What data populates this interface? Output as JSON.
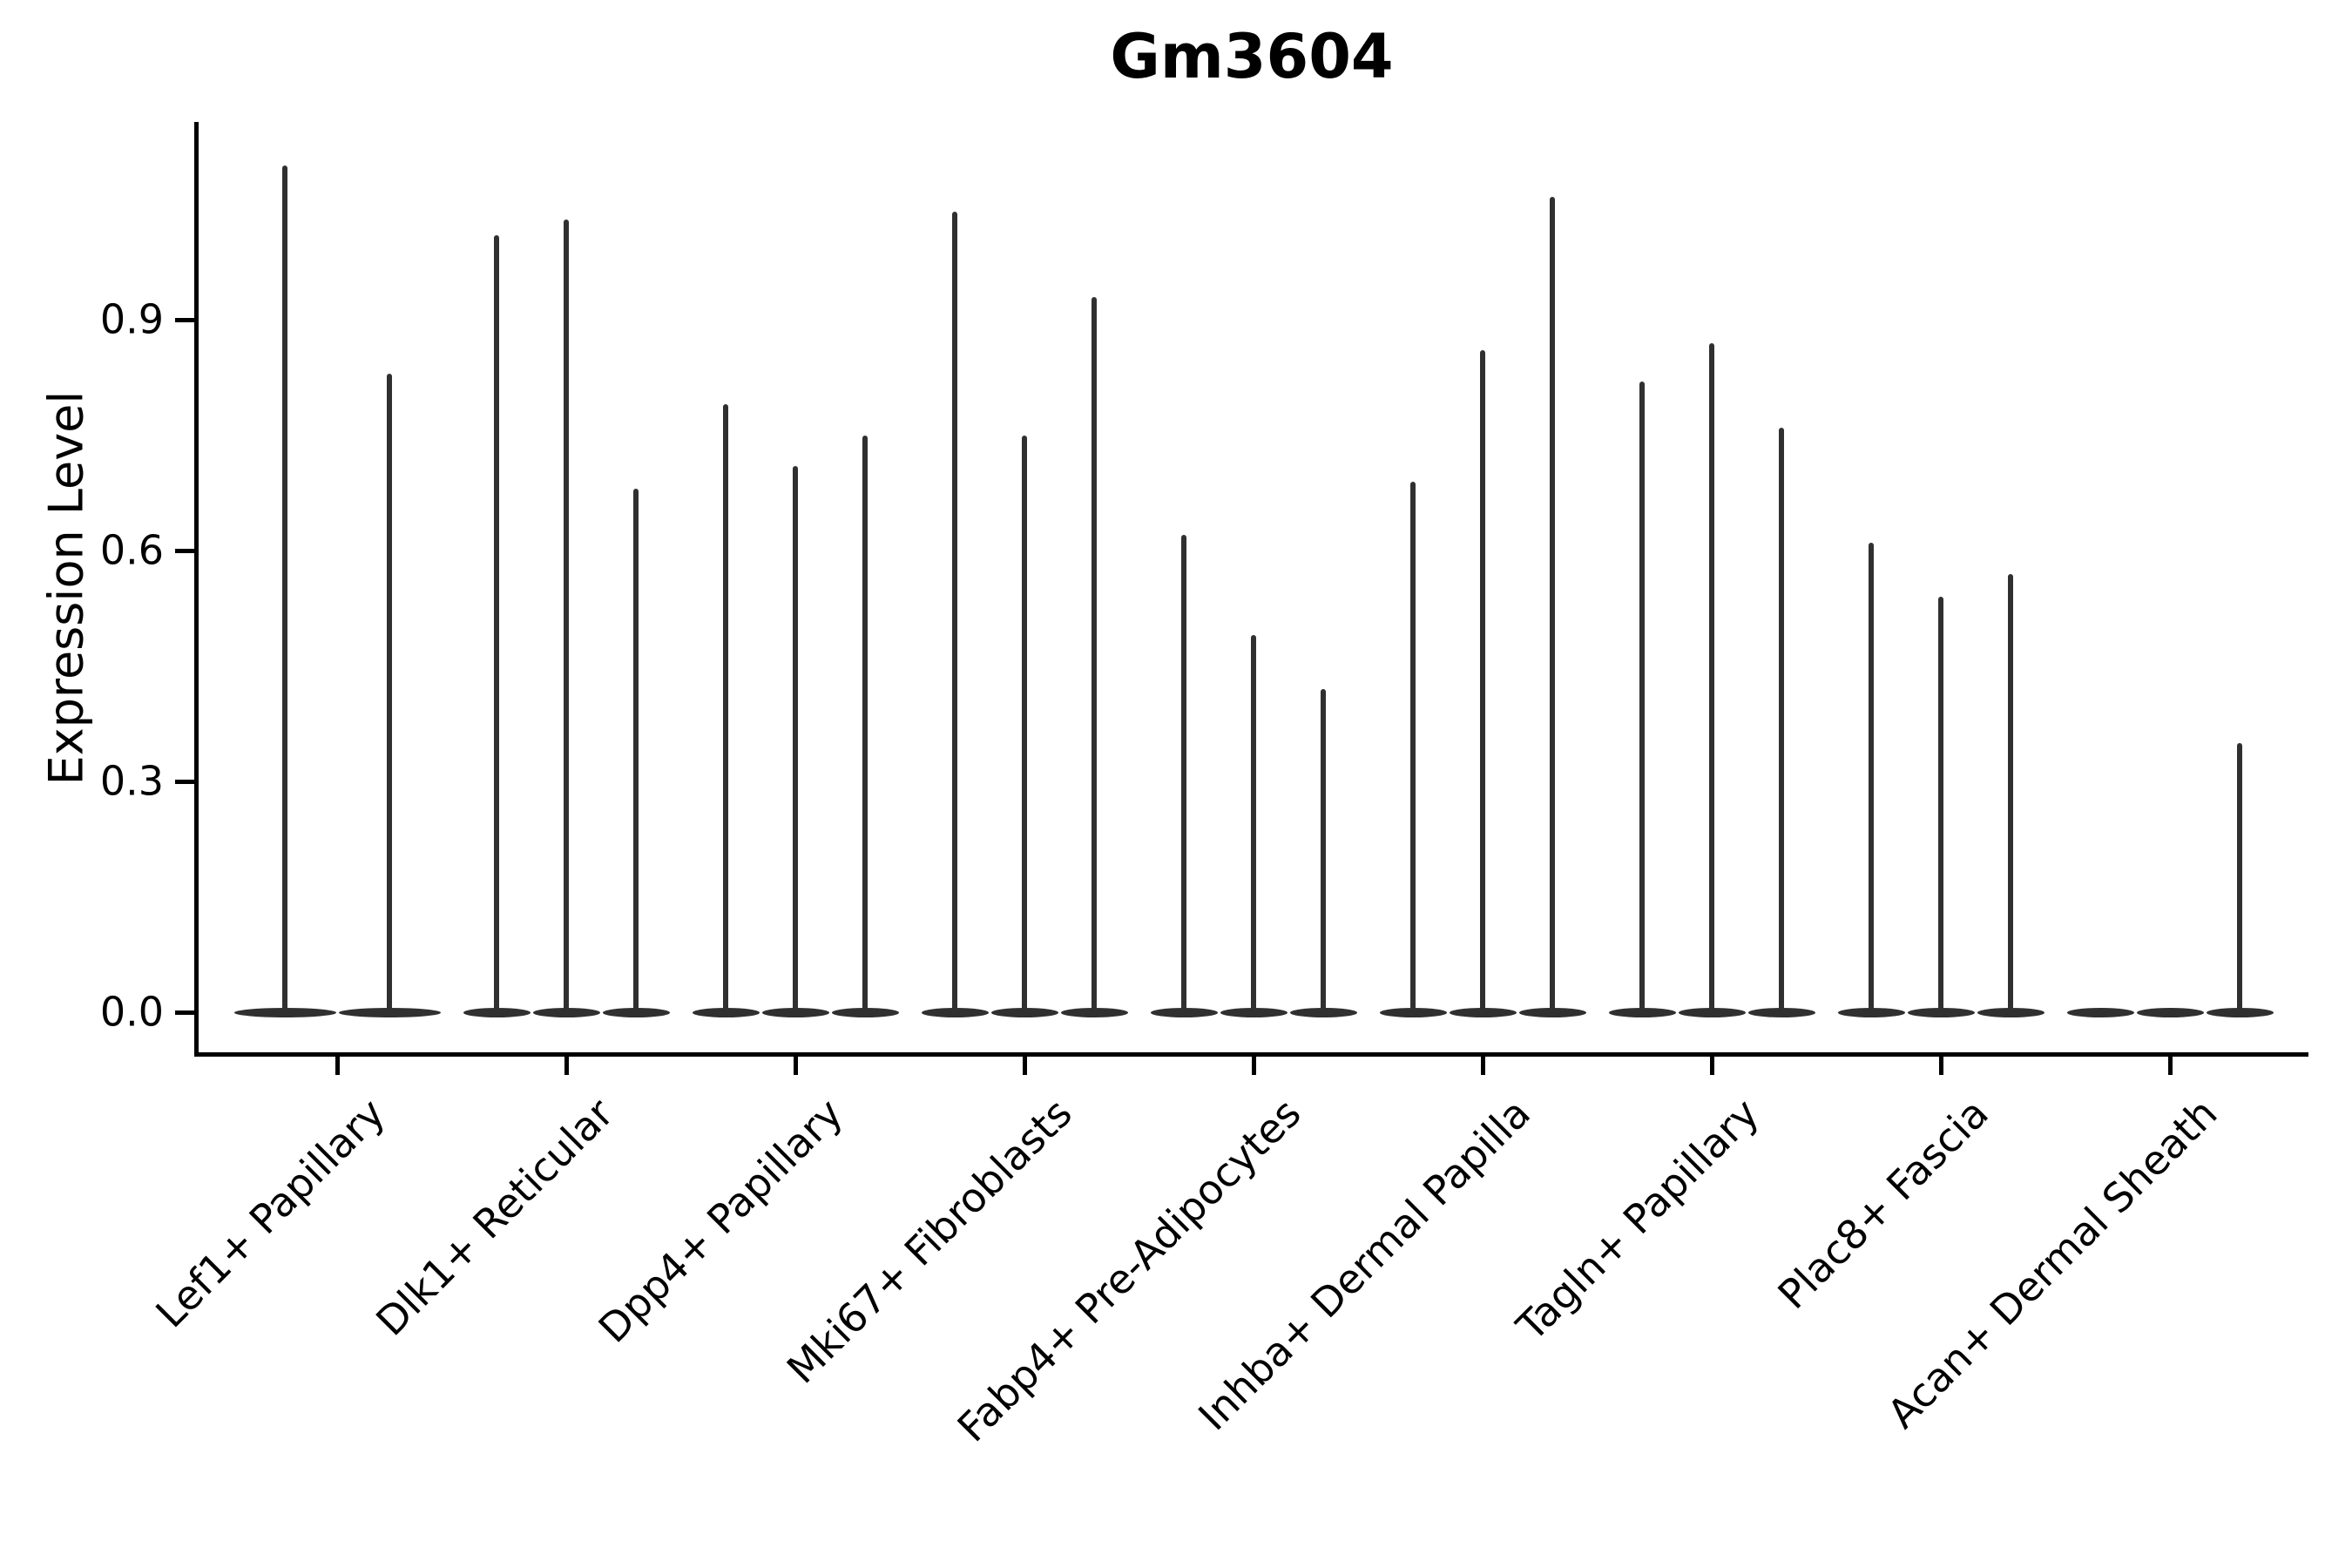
{
  "chart_data": {
    "type": "violin",
    "title": "Gm3604",
    "ylabel": "Expression Level",
    "xlabel": "",
    "ylim": [
      0,
      1.16
    ],
    "grid": false,
    "legend": "none",
    "yticks": [
      {
        "label": "0.0",
        "value": 0.0
      },
      {
        "label": "0.3",
        "value": 0.3
      },
      {
        "label": "0.6",
        "value": 0.6
      },
      {
        "label": "0.9",
        "value": 0.9
      }
    ],
    "categories": [
      "Lef1+ Papillary",
      "Dlk1+ Reticular",
      "Dpp4+ Papillary",
      "Mki67+ Fibroblasts",
      "Fabp4+ Pre-Adipocytes",
      "Inhba+ Dermal Papilla",
      "Tagln+ Papillary",
      "Plac8+ Fascia",
      "Acan+ Dermal Sheath"
    ],
    "groups": [
      {
        "category": "Lef1+ Papillary",
        "violin_maxima": [
          1.1,
          0.83
        ]
      },
      {
        "category": "Dlk1+ Reticular",
        "violin_maxima": [
          1.01,
          1.03,
          0.68
        ]
      },
      {
        "category": "Dpp4+ Papillary",
        "violin_maxima": [
          0.79,
          0.71,
          0.75
        ]
      },
      {
        "category": "Mki67+ Fibroblasts",
        "violin_maxima": [
          1.04,
          0.75,
          0.93
        ]
      },
      {
        "category": "Fabp4+ Pre-Adipocytes",
        "violin_maxima": [
          0.62,
          0.49,
          0.42
        ]
      },
      {
        "category": "Inhba+ Dermal Papilla",
        "violin_maxima": [
          0.69,
          0.86,
          1.06
        ]
      },
      {
        "category": "Tagln+ Papillary",
        "violin_maxima": [
          0.82,
          0.87,
          0.76
        ]
      },
      {
        "category": "Plac8+ Fascia",
        "violin_maxima": [
          0.61,
          0.54,
          0.57
        ]
      },
      {
        "category": "Acan+ Dermal Sheath",
        "violin_maxima": [
          0.0,
          0.0,
          0.35
        ]
      }
    ],
    "distribution_note": "Each violin is collapsed at 0 with a thin density tail reaching its maximum value",
    "style": {
      "violin_color": "#303030",
      "axis_color": "#000000",
      "background": "#ffffff"
    }
  }
}
